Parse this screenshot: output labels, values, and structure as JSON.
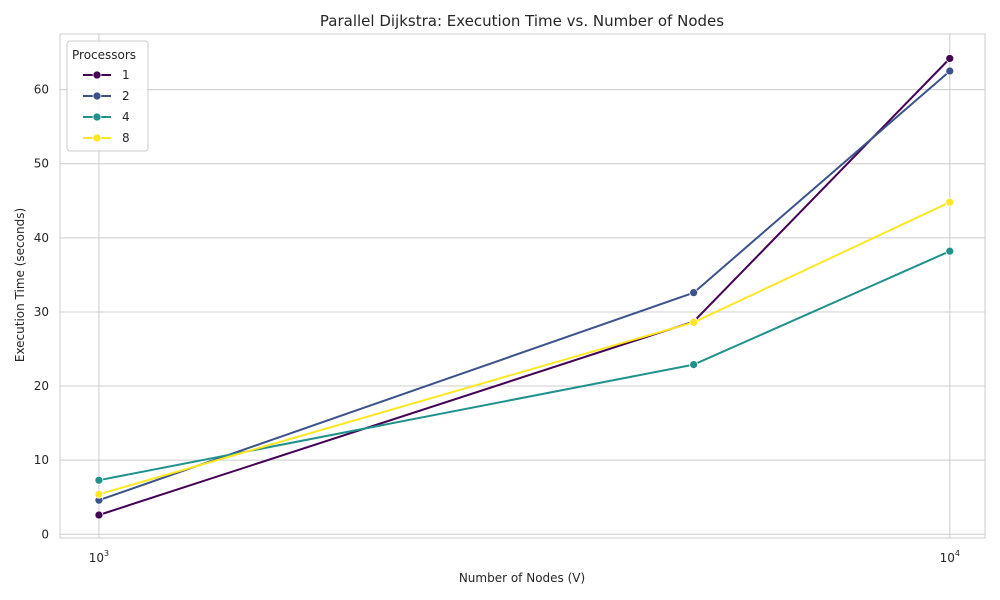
{
  "chart_data": {
    "type": "line",
    "title": "Parallel Dijkstra: Execution Time vs. Number of Nodes",
    "xlabel": "Number of Nodes (V)",
    "ylabel": "Execution Time (seconds)",
    "x_scale": "log",
    "x": [
      1000,
      5000,
      10000
    ],
    "xlim": [
      900,
      11000
    ],
    "ylim": [
      -0.5,
      67.5
    ],
    "x_ticks": [
      {
        "value": 1000,
        "base": "10",
        "exp": "3"
      },
      {
        "value": 10000,
        "base": "10",
        "exp": "4"
      }
    ],
    "y_ticks": [
      0,
      10,
      20,
      30,
      40,
      50,
      60
    ],
    "grid": true,
    "legend": {
      "title": "Processors",
      "placement": "top-left"
    },
    "series": [
      {
        "name": "1",
        "color": "#440154",
        "values": [
          2.6,
          28.7,
          64.2
        ]
      },
      {
        "name": "2",
        "color": "#3b528b",
        "values": [
          4.6,
          32.6,
          62.5
        ]
      },
      {
        "name": "4",
        "color": "#21918c",
        "values": [
          7.3,
          22.9,
          38.2
        ]
      },
      {
        "name": "8",
        "color": "#fde725",
        "values": [
          5.4,
          28.6,
          44.8
        ]
      }
    ]
  }
}
